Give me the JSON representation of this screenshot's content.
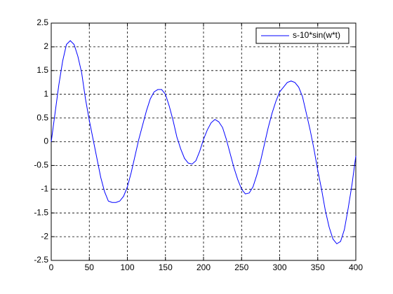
{
  "chart_data": {
    "type": "line",
    "x": [
      0,
      5,
      10,
      15,
      20,
      25,
      30,
      35,
      40,
      45,
      50,
      55,
      60,
      65,
      70,
      75,
      80,
      85,
      90,
      95,
      100,
      105,
      110,
      115,
      120,
      125,
      130,
      135,
      140,
      145,
      150,
      155,
      160,
      165,
      170,
      175,
      180,
      185,
      190,
      195,
      200,
      205,
      210,
      215,
      220,
      225,
      230,
      235,
      240,
      245,
      250,
      255,
      260,
      265,
      270,
      275,
      280,
      285,
      290,
      295,
      300,
      305,
      310,
      315,
      320,
      325,
      330,
      335,
      340,
      345,
      350,
      355,
      360,
      365,
      370,
      375,
      380,
      385,
      390,
      395,
      400
    ],
    "series": [
      {
        "name": "s-10*sin(w*t)",
        "color": "#0000ff",
        "values": [
          0,
          0.6,
          1.2,
          1.7,
          2.05,
          2.13,
          2.05,
          1.8,
          1.45,
          0.9,
          0.45,
          0.05,
          -0.35,
          -0.75,
          -1.05,
          -1.25,
          -1.28,
          -1.28,
          -1.25,
          -1.15,
          -0.95,
          -0.65,
          -0.3,
          0.05,
          0.35,
          0.65,
          0.9,
          1.05,
          1.1,
          1.1,
          1.0,
          0.75,
          0.45,
          0.1,
          -0.15,
          -0.35,
          -0.45,
          -0.47,
          -0.4,
          -0.2,
          0.05,
          0.25,
          0.4,
          0.47,
          0.42,
          0.3,
          0.05,
          -0.25,
          -0.55,
          -0.8,
          -1.0,
          -1.1,
          -1.08,
          -0.95,
          -0.7,
          -0.4,
          -0.05,
          0.3,
          0.6,
          0.85,
          1.05,
          1.15,
          1.25,
          1.28,
          1.25,
          1.15,
          0.95,
          0.6,
          0.25,
          -0.15,
          -0.6,
          -1.0,
          -1.45,
          -1.8,
          -2.05,
          -2.15,
          -2.1,
          -1.85,
          -1.4,
          -0.9,
          -0.3
        ]
      }
    ],
    "xlim": [
      0,
      400
    ],
    "xticks": [
      0,
      50,
      100,
      150,
      200,
      250,
      300,
      350,
      400
    ],
    "ylim": [
      -2.5,
      2.5
    ],
    "yticks": [
      -2.5,
      -2,
      -1.5,
      -1,
      -0.5,
      0,
      0.5,
      1,
      1.5,
      2,
      2.5
    ],
    "grid": true,
    "legend": "northeast"
  }
}
